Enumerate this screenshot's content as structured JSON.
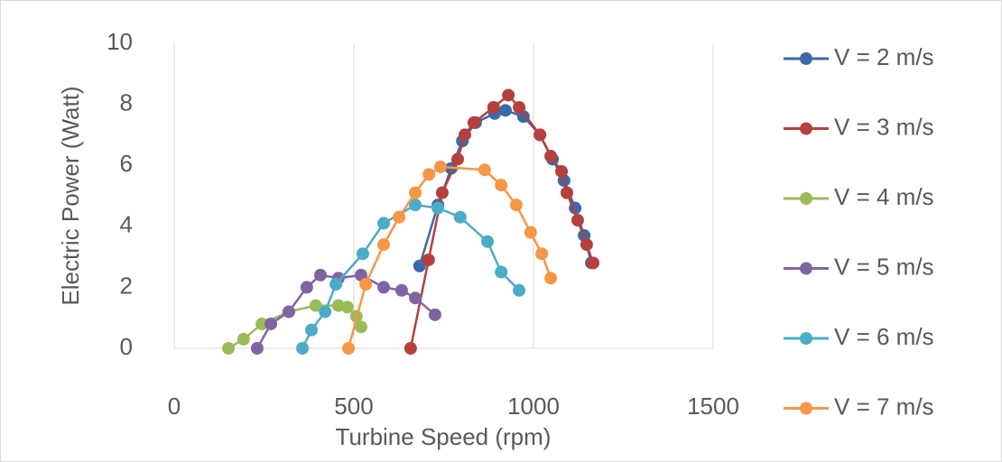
{
  "chart_data": {
    "type": "scatter-line",
    "x_label": "Turbine Speed (rpm)",
    "y_label": "Electric Power (Watt)",
    "xlim": [
      0,
      1500
    ],
    "xticks": [
      0,
      500,
      1000,
      1500
    ],
    "ylim": [
      0,
      10
    ],
    "yticks": [
      0,
      2,
      4,
      6,
      8,
      10
    ],
    "grid": "x",
    "legend": "right",
    "series": [
      {
        "name": "V = 2 m/s",
        "color": "#3b6aa8",
        "x": [
          683,
          734,
          771,
          802,
          839,
          892,
          922,
          972,
          1018,
          1053,
          1085,
          1116,
          1141,
          1161
        ],
        "values": [
          2.7,
          4.7,
          5.9,
          6.8,
          7.4,
          7.7,
          7.8,
          7.6,
          7.0,
          6.2,
          5.5,
          4.6,
          3.7,
          2.8
        ]
      },
      {
        "name": "V = 3 m/s",
        "color": "#b5403d",
        "x": [
          658,
          708,
          746,
          789,
          809,
          834,
          889,
          930,
          960,
          1018,
          1048,
          1078,
          1093,
          1123,
          1148,
          1166
        ],
        "values": [
          0,
          2.9,
          5.1,
          6.2,
          7.0,
          7.4,
          7.9,
          8.3,
          7.9,
          7.0,
          6.3,
          5.8,
          5.1,
          4.2,
          3.4,
          2.8
        ]
      },
      {
        "name": "V = 4 m/s",
        "color": "#9bbb59",
        "x": [
          151,
          193,
          244,
          319,
          394,
          457,
          482,
          507,
          520
        ],
        "values": [
          0,
          0.3,
          0.8,
          1.2,
          1.4,
          1.4,
          1.35,
          1.05,
          0.7
        ]
      },
      {
        "name": "V = 5 m/s",
        "color": "#8064a2",
        "x": [
          231,
          269,
          319,
          369,
          407,
          457,
          520,
          583,
          633,
          671,
          726
        ],
        "values": [
          0,
          0.8,
          1.2,
          2.0,
          2.4,
          2.3,
          2.4,
          2.0,
          1.9,
          1.65,
          1.1
        ]
      },
      {
        "name": "V = 6 m/s",
        "color": "#4bacc6",
        "x": [
          357,
          382,
          420,
          450,
          525,
          583,
          671,
          734,
          796,
          872,
          910,
          960
        ],
        "values": [
          0,
          0.6,
          1.2,
          2.1,
          3.1,
          4.1,
          4.7,
          4.6,
          4.3,
          3.5,
          2.5,
          1.9
        ]
      },
      {
        "name": "V = 7 m/s",
        "color": "#f79646",
        "x": [
          485,
          533,
          583,
          626,
          671,
          709,
          741,
          864,
          910,
          952,
          992,
          1023,
          1048
        ],
        "values": [
          0,
          2.1,
          3.4,
          4.3,
          5.1,
          5.7,
          5.95,
          5.85,
          5.35,
          4.7,
          3.8,
          3.1,
          2.3
        ]
      }
    ]
  }
}
